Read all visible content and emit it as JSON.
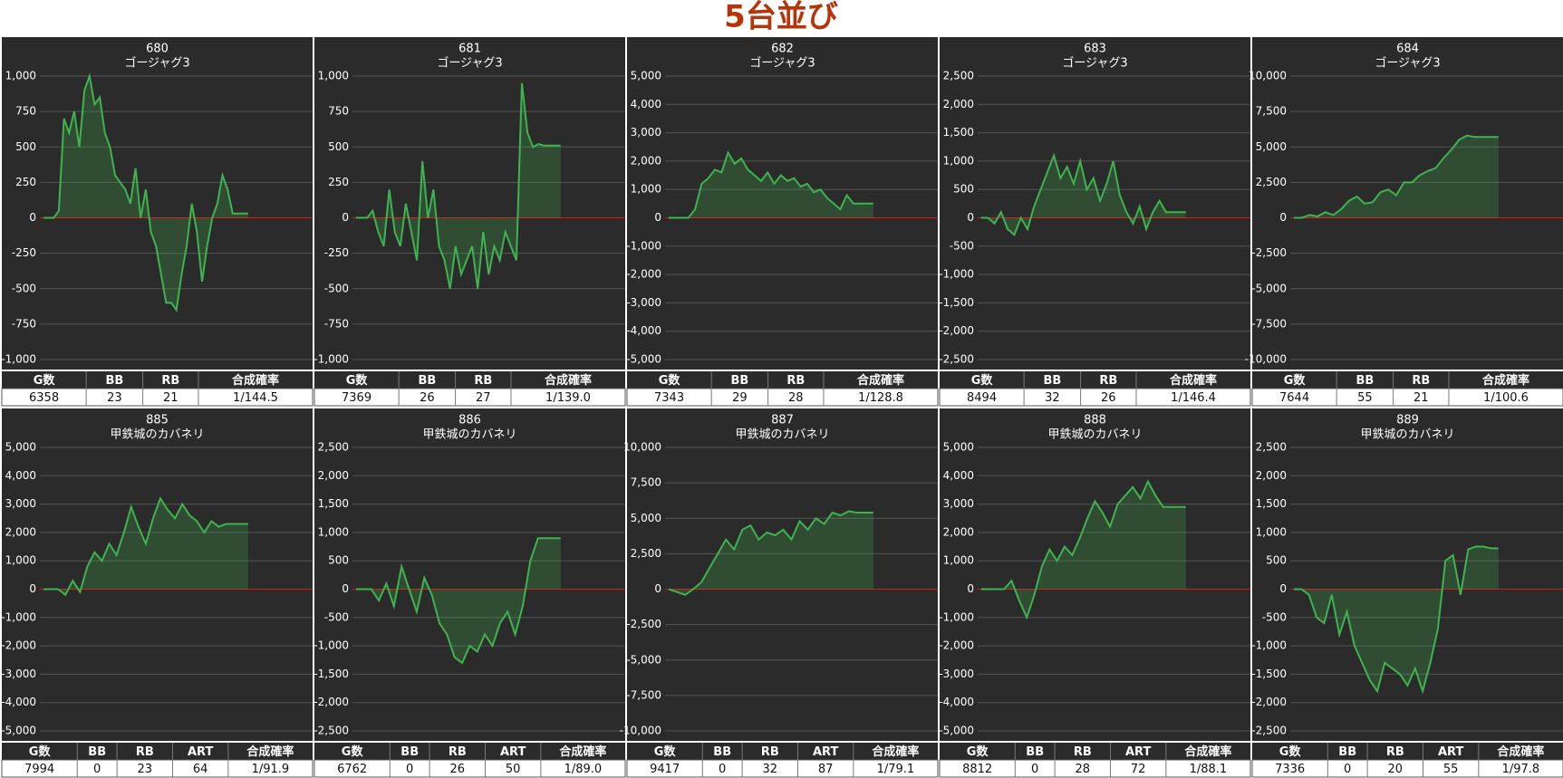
{
  "title": "5台並び",
  "chart_data": [
    {
      "type": "line",
      "title": "680",
      "subtitle": "ゴージャグ3",
      "color": "#3fb34f",
      "ylim": [
        -1000,
        1000
      ],
      "yticks": [
        {
          "value": -1000,
          "label": "-1,000"
        },
        -750,
        -500,
        -250,
        0,
        250,
        500,
        750,
        {
          "value": 1000,
          "label": "1,000"
        }
      ],
      "values": [
        0,
        0,
        0,
        50,
        700,
        600,
        750,
        500,
        900,
        1000,
        800,
        850,
        600,
        500,
        300,
        250,
        200,
        100,
        350,
        0,
        200,
        -100,
        -200,
        -400,
        -600,
        -600,
        -650,
        -400,
        -200,
        100,
        -100,
        -450,
        -200,
        0,
        100,
        300,
        200,
        30,
        30,
        30,
        30
      ],
      "table": {
        "headers": [
          "G数",
          "BB",
          "RB",
          "合成確率"
        ],
        "rows": [
          [
            "6358",
            "23",
            "21",
            "1/144.5"
          ]
        ]
      }
    },
    {
      "type": "line",
      "title": "681",
      "subtitle": "ゴージャグ3",
      "color": "#3fb34f",
      "ylim": [
        -1000,
        1000
      ],
      "yticks": [
        {
          "value": -1000,
          "label": "-1,000"
        },
        -750,
        -500,
        -250,
        0,
        250,
        500,
        750,
        {
          "value": 1000,
          "label": "1,000"
        }
      ],
      "values": [
        0,
        0,
        0,
        50,
        -100,
        -200,
        200,
        -100,
        -200,
        100,
        -100,
        -300,
        400,
        0,
        200,
        -200,
        -300,
        -500,
        -200,
        -400,
        -300,
        -200,
        -500,
        -100,
        -400,
        -200,
        -300,
        -100,
        -200,
        -300,
        950,
        600,
        500,
        520,
        510,
        510,
        510,
        510
      ],
      "table": {
        "headers": [
          "G数",
          "BB",
          "RB",
          "合成確率"
        ],
        "rows": [
          [
            "7369",
            "26",
            "27",
            "1/139.0"
          ]
        ]
      }
    },
    {
      "type": "line",
      "title": "682",
      "subtitle": "ゴージャグ3",
      "color": "#3fb34f",
      "ylim": [
        -5000,
        5000
      ],
      "yticks": [
        {
          "value": -5000,
          "label": "-5,000"
        },
        {
          "value": -4000,
          "label": "-4,000"
        },
        {
          "value": -3000,
          "label": "-3,000"
        },
        {
          "value": -2000,
          "label": "-2,000"
        },
        {
          "value": -1000,
          "label": "-1,000"
        },
        0,
        {
          "value": 1000,
          "label": "1,000"
        },
        {
          "value": 2000,
          "label": "2,000"
        },
        {
          "value": 3000,
          "label": "3,000"
        },
        {
          "value": 4000,
          "label": "4,000"
        },
        {
          "value": 5000,
          "label": "5,000"
        }
      ],
      "values": [
        0,
        0,
        0,
        0,
        300,
        1200,
        1400,
        1700,
        1600,
        2300,
        1900,
        2100,
        1700,
        1500,
        1300,
        1600,
        1200,
        1500,
        1300,
        1400,
        1100,
        1200,
        900,
        1000,
        700,
        500,
        300,
        800,
        500,
        500,
        500,
        500
      ],
      "table": {
        "headers": [
          "G数",
          "BB",
          "RB",
          "合成確率"
        ],
        "rows": [
          [
            "7343",
            "29",
            "28",
            "1/128.8"
          ]
        ]
      }
    },
    {
      "type": "line",
      "title": "683",
      "subtitle": "ゴージャグ3",
      "color": "#3fb34f",
      "ylim": [
        -2500,
        2500
      ],
      "yticks": [
        {
          "value": -2500,
          "label": "-2,500"
        },
        {
          "value": -2000,
          "label": "-2,000"
        },
        {
          "value": -1500,
          "label": "-1,500"
        },
        {
          "value": -1000,
          "label": "-1,000"
        },
        -500,
        0,
        500,
        {
          "value": 1000,
          "label": "1,000"
        },
        {
          "value": 1500,
          "label": "1,500"
        },
        {
          "value": 2000,
          "label": "2,000"
        },
        {
          "value": 2500,
          "label": "2,500"
        }
      ],
      "values": [
        0,
        0,
        -100,
        100,
        -200,
        -300,
        0,
        -200,
        200,
        500,
        800,
        1100,
        700,
        900,
        600,
        1000,
        500,
        700,
        300,
        600,
        1000,
        400,
        100,
        -100,
        200,
        -200,
        100,
        300,
        100,
        100,
        100,
        100
      ],
      "table": {
        "headers": [
          "G数",
          "BB",
          "RB",
          "合成確率"
        ],
        "rows": [
          [
            "8494",
            "32",
            "26",
            "1/146.4"
          ]
        ]
      }
    },
    {
      "type": "line",
      "title": "684",
      "subtitle": "ゴージャグ3",
      "color": "#3fb34f",
      "ylim": [
        -10000,
        10000
      ],
      "yticks": [
        {
          "value": -10000,
          "label": "-10,000"
        },
        {
          "value": -7500,
          "label": "-7,500"
        },
        {
          "value": -5000,
          "label": "-5,000"
        },
        {
          "value": -2500,
          "label": "-2,500"
        },
        0,
        {
          "value": 2500,
          "label": "2,500"
        },
        {
          "value": 5000,
          "label": "5,000"
        },
        {
          "value": 7500,
          "label": "7,500"
        },
        {
          "value": 10000,
          "label": "10,000"
        }
      ],
      "values": [
        0,
        0,
        200,
        100,
        400,
        200,
        600,
        1200,
        1500,
        1000,
        1100,
        1800,
        2000,
        1600,
        2500,
        2500,
        3000,
        3300,
        3500,
        4200,
        4800,
        5500,
        5800,
        5700,
        5700,
        5700,
        5700
      ],
      "table": {
        "headers": [
          "G数",
          "BB",
          "RB",
          "合成確率"
        ],
        "rows": [
          [
            "7644",
            "55",
            "21",
            "1/100.6"
          ]
        ]
      }
    },
    {
      "type": "line",
      "title": "885",
      "subtitle": "甲鉄城のカバネリ",
      "color": "#3fb34f",
      "ylim": [
        -5000,
        5000
      ],
      "yticks": [
        {
          "value": -5000,
          "label": "-5,000"
        },
        {
          "value": -4000,
          "label": "-4,000"
        },
        {
          "value": -3000,
          "label": "-3,000"
        },
        {
          "value": -2000,
          "label": "-2,000"
        },
        {
          "value": -1000,
          "label": "-1,000"
        },
        0,
        {
          "value": 1000,
          "label": "1,000"
        },
        {
          "value": 2000,
          "label": "2,000"
        },
        {
          "value": 3000,
          "label": "3,000"
        },
        {
          "value": 4000,
          "label": "4,000"
        },
        {
          "value": 5000,
          "label": "5,000"
        }
      ],
      "values": [
        0,
        0,
        0,
        -200,
        300,
        -100,
        800,
        1300,
        1000,
        1600,
        1200,
        2000,
        2900,
        2200,
        1600,
        2500,
        3200,
        2800,
        2500,
        3000,
        2600,
        2400,
        2000,
        2400,
        2200,
        2300,
        2300,
        2300,
        2300
      ],
      "table": {
        "headers": [
          "G数",
          "BB",
          "RB",
          "ART",
          "合成確率"
        ],
        "rows": [
          [
            "7994",
            "0",
            "23",
            "64",
            "1/91.9"
          ]
        ]
      }
    },
    {
      "type": "line",
      "title": "886",
      "subtitle": "甲鉄城のカバネリ",
      "color": "#3fb34f",
      "ylim": [
        -2500,
        2500
      ],
      "yticks": [
        {
          "value": -2500,
          "label": "-2,500"
        },
        {
          "value": -2000,
          "label": "-2,000"
        },
        {
          "value": -1500,
          "label": "-1,500"
        },
        {
          "value": -1000,
          "label": "-1,000"
        },
        -500,
        0,
        500,
        {
          "value": 1000,
          "label": "1,000"
        },
        {
          "value": 1500,
          "label": "1,500"
        },
        {
          "value": 2000,
          "label": "2,000"
        },
        {
          "value": 2500,
          "label": "2,500"
        }
      ],
      "values": [
        0,
        0,
        0,
        -200,
        100,
        -300,
        400,
        0,
        -400,
        200,
        -100,
        -600,
        -800,
        -1200,
        -1300,
        -1000,
        -1100,
        -800,
        -1000,
        -600,
        -400,
        -800,
        -300,
        500,
        900,
        900,
        900,
        900
      ],
      "table": {
        "headers": [
          "G数",
          "BB",
          "RB",
          "ART",
          "合成確率"
        ],
        "rows": [
          [
            "6762",
            "0",
            "26",
            "50",
            "1/89.0"
          ]
        ]
      }
    },
    {
      "type": "line",
      "title": "887",
      "subtitle": "甲鉄城のカバネリ",
      "color": "#3fb34f",
      "ylim": [
        -10000,
        10000
      ],
      "yticks": [
        {
          "value": -10000,
          "label": "-10,000"
        },
        {
          "value": -7500,
          "label": "-7,500"
        },
        {
          "value": -5000,
          "label": "-5,000"
        },
        {
          "value": -2500,
          "label": "-2,500"
        },
        0,
        {
          "value": 2500,
          "label": "2,500"
        },
        {
          "value": 5000,
          "label": "5,000"
        },
        {
          "value": 7500,
          "label": "7,500"
        },
        {
          "value": 10000,
          "label": "10,000"
        }
      ],
      "values": [
        0,
        -200,
        -400,
        0,
        500,
        1500,
        2500,
        3500,
        2800,
        4200,
        4500,
        3500,
        4000,
        3800,
        4200,
        3500,
        4800,
        4200,
        5000,
        4600,
        5400,
        5200,
        5500,
        5400,
        5400,
        5400
      ],
      "table": {
        "headers": [
          "G数",
          "BB",
          "RB",
          "ART",
          "合成確率"
        ],
        "rows": [
          [
            "9417",
            "0",
            "32",
            "87",
            "1/79.1"
          ]
        ]
      }
    },
    {
      "type": "line",
      "title": "888",
      "subtitle": "甲鉄城のカバネリ",
      "color": "#3fb34f",
      "ylim": [
        -5000,
        5000
      ],
      "yticks": [
        {
          "value": -5000,
          "label": "-5,000"
        },
        {
          "value": -4000,
          "label": "-4,000"
        },
        {
          "value": -3000,
          "label": "-3,000"
        },
        {
          "value": -2000,
          "label": "-2,000"
        },
        {
          "value": -1000,
          "label": "-1,000"
        },
        0,
        {
          "value": 1000,
          "label": "1,000"
        },
        {
          "value": 2000,
          "label": "2,000"
        },
        {
          "value": 3000,
          "label": "3,000"
        },
        {
          "value": 4000,
          "label": "4,000"
        },
        {
          "value": 5000,
          "label": "5,000"
        }
      ],
      "values": [
        0,
        0,
        0,
        0,
        300,
        -400,
        -1000,
        -200,
        800,
        1400,
        1000,
        1500,
        1200,
        1800,
        2500,
        3100,
        2700,
        2200,
        3000,
        3300,
        3600,
        3200,
        3800,
        3300,
        2900,
        2900,
        2900,
        2900
      ],
      "table": {
        "headers": [
          "G数",
          "BB",
          "RB",
          "ART",
          "合成確率"
        ],
        "rows": [
          [
            "8812",
            "0",
            "28",
            "72",
            "1/88.1"
          ]
        ]
      }
    },
    {
      "type": "line",
      "title": "889",
      "subtitle": "甲鉄城のカバネリ",
      "color": "#3fb34f",
      "ylim": [
        -2500,
        2500
      ],
      "yticks": [
        {
          "value": -2500,
          "label": "-2,500"
        },
        {
          "value": -2000,
          "label": "-2,000"
        },
        {
          "value": -1500,
          "label": "-1,500"
        },
        {
          "value": -1000,
          "label": "-1,000"
        },
        -500,
        0,
        500,
        {
          "value": 1000,
          "label": "1,000"
        },
        {
          "value": 1500,
          "label": "1,500"
        },
        {
          "value": 2000,
          "label": "2,000"
        },
        {
          "value": 2500,
          "label": "2,500"
        }
      ],
      "values": [
        0,
        0,
        -100,
        -500,
        -600,
        -100,
        -800,
        -400,
        -1000,
        -1300,
        -1600,
        -1800,
        -1300,
        -1400,
        -1500,
        -1700,
        -1400,
        -1800,
        -1300,
        -700,
        500,
        600,
        -100,
        700,
        750,
        750,
        720,
        720
      ],
      "table": {
        "headers": [
          "G数",
          "BB",
          "RB",
          "ART",
          "合成確率"
        ],
        "rows": [
          [
            "7336",
            "0",
            "20",
            "55",
            "1/97.8"
          ]
        ]
      }
    }
  ]
}
